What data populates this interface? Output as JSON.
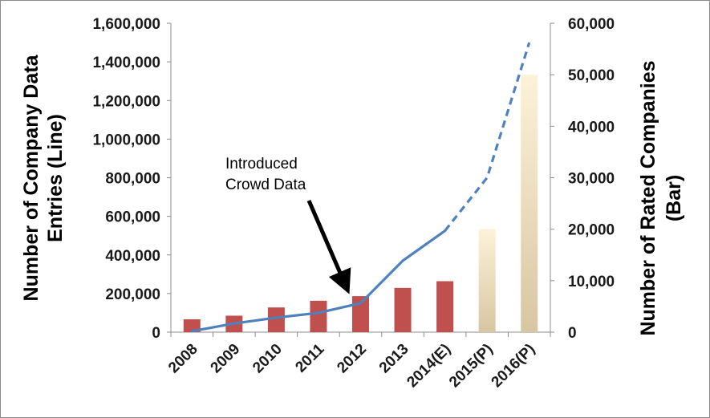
{
  "chart_data": {
    "type": "bar+line",
    "categories": [
      "2008",
      "2009",
      "2010",
      "2011",
      "2012",
      "2013",
      "2014(E)",
      "2015(P)",
      "2016(P)"
    ],
    "bar_series": {
      "axis": "right",
      "values": [
        2500,
        3200,
        4800,
        6100,
        7000,
        8600,
        9900,
        20000,
        50000
      ],
      "colors": {
        "actual": "#c0504d",
        "projected_top": "#fdf2d8",
        "projected_bottom": "#d8c6a2"
      },
      "projected_from_index": 7
    },
    "line_series": {
      "axis": "left",
      "values": [
        5000,
        45000,
        75000,
        100000,
        150000,
        370000,
        525000,
        800000,
        1500000
      ],
      "color": "#4f81bd",
      "dashed_from_index": 6
    },
    "left_axis": {
      "title_lines": [
        "Number of Company Data",
        "Entries (Line)"
      ],
      "ylim": [
        0,
        1600000
      ],
      "ticks": [
        "0",
        "200,000",
        "400,000",
        "600,000",
        "800,000",
        "1,000,000",
        "1,200,000",
        "1,400,000",
        "1,600,000"
      ]
    },
    "right_axis": {
      "title_lines": [
        "Number of Rated Companies",
        "(Bar)"
      ],
      "ylim": [
        0,
        60000
      ],
      "ticks": [
        "0",
        "10,000",
        "20,000",
        "30,000",
        "40,000",
        "50,000",
        "60,000"
      ]
    },
    "annotation": {
      "lines": [
        "Introduced",
        "Crowd Data"
      ],
      "points_to_index": 4
    },
    "grid": false,
    "legend": "none"
  }
}
